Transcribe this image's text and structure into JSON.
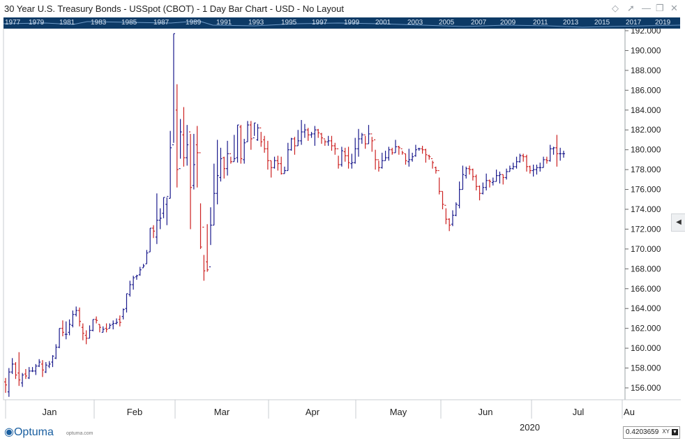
{
  "window": {
    "title": "30 Year U.S. Treasury Bonds - USSpot (CBOT) - 1 Day Bar Chart - USD - No Layout",
    "icons": [
      "diamond-icon",
      "pin-icon",
      "minimize-icon",
      "restore-icon",
      "close-icon"
    ]
  },
  "overview": {
    "years": [
      "1977",
      "1979",
      "1981",
      "1983",
      "1985",
      "1987",
      "1989",
      "1991",
      "1993",
      "1995",
      "1997",
      "1999",
      "2001",
      "2003",
      "2005",
      "2007",
      "2009",
      "2011",
      "2013",
      "2015",
      "2017",
      "2019"
    ],
    "background": "#0d3a66"
  },
  "footer": {
    "logo": "Optuma",
    "logo_url": "optuma.com",
    "year": "2020",
    "readout_value": "0.4203659",
    "readout_mode": "XY"
  },
  "chart_data": {
    "type": "bar",
    "subtype": "ohlc",
    "x_month_labels": [
      "Jan",
      "Feb",
      "Mar",
      "Apr",
      "May",
      "Jun",
      "Jul",
      "Au"
    ],
    "y_ticks": [
      "156.000",
      "158.000",
      "160.000",
      "162.000",
      "164.000",
      "166.000",
      "168.000",
      "170.000",
      "172.000",
      "174.000",
      "176.000",
      "178.000",
      "180.000",
      "182.000",
      "184.000",
      "186.000",
      "188.000",
      "190.000",
      "192.000"
    ],
    "ylim": [
      154.6,
      192.3
    ],
    "grid": false,
    "up_color": "#1a1a8c",
    "down_color": "#cc2020",
    "bars": [
      [
        156.6,
        156.3,
        155.5,
        157.0
      ],
      [
        155.6,
        157.6,
        155.1,
        158.0
      ],
      [
        157.6,
        158.4,
        157.4,
        159.0
      ],
      [
        158.4,
        157.3,
        156.9,
        158.6
      ],
      [
        157.5,
        156.8,
        156.2,
        159.6
      ],
      [
        156.5,
        157.3,
        156.1,
        157.5
      ],
      [
        157.4,
        157.2,
        156.9,
        157.9
      ],
      [
        157.0,
        157.7,
        156.9,
        158.1
      ],
      [
        157.7,
        157.7,
        157.6,
        158.1
      ],
      [
        157.7,
        158.2,
        157.3,
        158.4
      ],
      [
        158.2,
        158.6,
        158.1,
        158.9
      ],
      [
        158.4,
        157.8,
        157.1,
        158.8
      ],
      [
        157.6,
        158.3,
        157.5,
        158.6
      ],
      [
        158.2,
        158.4,
        158.0,
        158.7
      ],
      [
        158.6,
        159.2,
        158.1,
        159.3
      ],
      [
        159.0,
        160.1,
        158.9,
        160.4
      ],
      [
        160.1,
        162.0,
        160.0,
        162.0
      ],
      [
        162.0,
        161.6,
        161.2,
        162.8
      ],
      [
        161.4,
        161.4,
        160.9,
        162.7
      ],
      [
        161.6,
        162.4,
        161.3,
        162.9
      ],
      [
        162.3,
        163.4,
        162.1,
        163.8
      ],
      [
        163.4,
        163.8,
        163.2,
        164.2
      ],
      [
        163.8,
        162.7,
        162.2,
        164.1
      ],
      [
        162.1,
        161.5,
        160.8,
        162.5
      ],
      [
        161.3,
        161.0,
        160.4,
        161.8
      ],
      [
        161.0,
        161.8,
        161.0,
        162.3
      ],
      [
        161.8,
        162.9,
        161.7,
        162.9
      ],
      [
        162.9,
        162.8,
        162.5,
        163.2
      ],
      [
        162.4,
        162.1,
        161.6,
        162.4
      ],
      [
        161.6,
        161.9,
        161.6,
        162.2
      ],
      [
        162.0,
        161.9,
        161.6,
        162.5
      ],
      [
        162.0,
        162.3,
        162.0,
        162.5
      ],
      [
        162.4,
        162.5,
        161.9,
        162.8
      ],
      [
        162.5,
        162.6,
        162.4,
        163.0
      ],
      [
        162.9,
        162.6,
        162.2,
        163.3
      ],
      [
        163.2,
        163.9,
        162.9,
        164.0
      ],
      [
        164.0,
        165.5,
        163.6,
        165.5
      ],
      [
        165.4,
        166.4,
        165.2,
        166.8
      ],
      [
        166.4,
        167.1,
        165.9,
        167.3
      ],
      [
        167.2,
        167.3,
        166.9,
        167.4
      ],
      [
        167.4,
        167.9,
        167.3,
        168.2
      ],
      [
        168.1,
        168.3,
        168.1,
        168.5
      ],
      [
        168.5,
        169.6,
        168.5,
        169.9
      ],
      [
        169.7,
        172.1,
        169.7,
        172.1
      ],
      [
        172.1,
        171.8,
        171.1,
        172.4
      ],
      [
        171.2,
        172.9,
        170.5,
        175.6
      ],
      [
        172.9,
        173.1,
        172.0,
        174.1
      ],
      [
        173.6,
        175.2,
        173.1,
        175.2
      ],
      [
        174.5,
        175.3,
        172.4,
        175.2
      ],
      [
        175.1,
        180.2,
        175.1,
        181.9
      ],
      [
        180.5,
        191.7,
        180.7,
        191.7
      ],
      [
        184.0,
        178.0,
        176.2,
        186.6
      ],
      [
        178.1,
        181.8,
        179.1,
        183.1
      ],
      [
        181.5,
        179.2,
        178.3,
        184.3
      ],
      [
        179.2,
        180.5,
        178.4,
        182.5
      ],
      [
        181.8,
        176.2,
        172.0,
        181.6
      ],
      [
        176.4,
        178.5,
        176.0,
        181.6
      ],
      [
        180.5,
        179.7,
        176.2,
        182.4
      ],
      [
        179.7,
        170.2,
        170.0,
        174.6
      ],
      [
        172.2,
        167.8,
        166.8,
        169.4
      ],
      [
        168.7,
        167.9,
        167.7,
        172.5
      ],
      [
        168.2,
        172.4,
        170.4,
        174.2
      ],
      [
        172.4,
        175.6,
        172.4,
        178.6
      ],
      [
        175.6,
        177.4,
        174.5,
        181.0
      ],
      [
        177.2,
        179.1,
        176.8,
        180.2
      ],
      [
        179.2,
        178.1,
        177.1,
        179.3
      ],
      [
        178.1,
        179.6,
        177.4,
        180.9
      ],
      [
        179.6,
        178.8,
        178.6,
        179.3
      ],
      [
        178.8,
        179.1,
        178.8,
        181.5
      ],
      [
        179.2,
        182.5,
        178.7,
        182.5
      ],
      [
        182.3,
        179.1,
        178.6,
        182.5
      ],
      [
        179.0,
        180.7,
        178.6,
        181.1
      ],
      [
        180.8,
        182.5,
        180.8,
        182.9
      ],
      [
        182.5,
        181.1,
        180.0,
        182.9
      ],
      [
        181.2,
        182.7,
        181.4,
        182.7
      ],
      [
        181.0,
        182.2,
        180.9,
        182.6
      ],
      [
        182.2,
        180.8,
        180.3,
        181.8
      ],
      [
        181.0,
        180.1,
        179.7,
        181.4
      ],
      [
        180.1,
        178.9,
        178.0,
        180.9
      ],
      [
        178.9,
        178.2,
        177.2,
        178.9
      ],
      [
        178.2,
        178.9,
        178.1,
        179.3
      ],
      [
        178.9,
        178.6,
        177.9,
        179.4
      ],
      [
        178.6,
        177.6,
        177.5,
        179.3
      ],
      [
        177.6,
        177.9,
        177.6,
        178.3
      ],
      [
        177.9,
        180.0,
        177.9,
        180.7
      ],
      [
        180.0,
        181.1,
        179.9,
        181.2
      ],
      [
        181.1,
        180.4,
        179.5,
        181.3
      ],
      [
        180.4,
        180.9,
        180.4,
        182.0
      ],
      [
        180.9,
        181.8,
        180.5,
        183.0
      ],
      [
        181.8,
        182.0,
        181.2,
        182.6
      ],
      [
        182.0,
        181.5,
        180.9,
        182.2
      ],
      [
        181.5,
        181.6,
        181.2,
        181.8
      ],
      [
        181.6,
        182.0,
        180.4,
        182.4
      ],
      [
        182.0,
        181.7,
        181.2,
        182.1
      ],
      [
        181.6,
        181.2,
        180.6,
        181.7
      ],
      [
        181.1,
        180.8,
        180.4,
        181.0
      ],
      [
        180.8,
        180.9,
        180.4,
        181.4
      ],
      [
        180.9,
        180.4,
        179.9,
        181.4
      ],
      [
        180.4,
        180.1,
        179.5,
        180.7
      ],
      [
        180.1,
        178.5,
        178.1,
        179.4
      ],
      [
        178.5,
        179.9,
        178.3,
        180.3
      ],
      [
        179.8,
        179.4,
        178.8,
        180.2
      ],
      [
        179.4,
        178.7,
        178.1,
        180.3
      ],
      [
        178.6,
        178.7,
        178.1,
        179.6
      ],
      [
        178.7,
        180.1,
        178.6,
        181.2
      ],
      [
        180.1,
        181.1,
        179.3,
        182.1
      ],
      [
        181.1,
        181.5,
        180.6,
        181.7
      ],
      [
        181.5,
        180.6,
        180.1,
        181.4
      ],
      [
        180.6,
        181.6,
        180.6,
        182.5
      ],
      [
        181.6,
        180.9,
        179.8,
        181.3
      ],
      [
        181.0,
        179.0,
        178.0,
        180.0
      ],
      [
        179.0,
        178.2,
        177.8,
        178.9
      ],
      [
        178.2,
        178.9,
        178.1,
        179.7
      ],
      [
        178.9,
        179.2,
        178.9,
        179.9
      ],
      [
        179.2,
        180.0,
        178.9,
        180.3
      ],
      [
        180.0,
        179.7,
        179.5,
        180.2
      ],
      [
        179.7,
        180.3,
        179.7,
        181.0
      ],
      [
        180.3,
        180.2,
        179.5,
        180.4
      ],
      [
        180.1,
        179.7,
        179.5,
        179.9
      ],
      [
        179.6,
        178.9,
        178.5,
        179.6
      ],
      [
        178.8,
        179.0,
        178.3,
        180.1
      ],
      [
        179.0,
        179.3,
        178.8,
        179.7
      ],
      [
        179.4,
        180.0,
        179.3,
        180.5
      ],
      [
        180.1,
        180.1,
        179.9,
        180.2
      ],
      [
        180.1,
        180.0,
        179.6,
        180.4
      ],
      [
        180.0,
        179.5,
        178.7,
        180.1
      ],
      [
        179.4,
        179.3,
        179.0,
        179.5
      ],
      [
        179.1,
        178.7,
        178.1,
        178.9
      ],
      [
        178.2,
        177.9,
        177.6,
        178.3
      ],
      [
        177.9,
        175.8,
        175.5,
        177.2
      ],
      [
        175.8,
        174.5,
        174.0,
        175.8
      ],
      [
        174.4,
        173.0,
        172.5,
        174.1
      ],
      [
        173.0,
        172.4,
        171.8,
        173.1
      ],
      [
        172.5,
        173.4,
        172.3,
        173.9
      ],
      [
        173.4,
        174.5,
        173.3,
        174.7
      ],
      [
        174.4,
        176.0,
        174.1,
        176.8
      ],
      [
        176.0,
        177.5,
        176.0,
        178.4
      ],
      [
        177.4,
        178.1,
        177.1,
        178.3
      ],
      [
        178.1,
        178.0,
        177.5,
        178.4
      ],
      [
        178.0,
        177.3,
        176.9,
        178.1
      ],
      [
        177.3,
        176.3,
        175.9,
        177.5
      ],
      [
        176.3,
        175.6,
        174.9,
        176.4
      ],
      [
        175.6,
        176.2,
        175.5,
        176.7
      ],
      [
        176.2,
        176.9,
        175.9,
        177.6
      ],
      [
        176.9,
        176.8,
        176.2,
        177.0
      ],
      [
        176.7,
        176.8,
        176.4,
        177.2
      ],
      [
        176.8,
        177.4,
        176.8,
        178.0
      ],
      [
        177.4,
        177.5,
        176.6,
        177.8
      ],
      [
        177.5,
        177.2,
        176.5,
        177.5
      ],
      [
        177.2,
        177.8,
        177.0,
        178.1
      ],
      [
        177.8,
        178.1,
        177.8,
        178.4
      ],
      [
        178.1,
        178.3,
        178.0,
        178.7
      ],
      [
        178.3,
        178.8,
        178.1,
        179.3
      ],
      [
        178.8,
        179.4,
        178.7,
        179.6
      ],
      [
        179.4,
        179.3,
        178.8,
        179.6
      ],
      [
        179.3,
        178.3,
        177.8,
        179.5
      ],
      [
        178.3,
        177.9,
        177.6,
        178.4
      ],
      [
        177.9,
        178.0,
        177.3,
        178.5
      ],
      [
        178.0,
        178.2,
        177.5,
        178.5
      ],
      [
        178.2,
        178.2,
        177.8,
        178.7
      ],
      [
        178.2,
        179.0,
        178.2,
        179.3
      ],
      [
        179.0,
        178.9,
        178.6,
        179.3
      ],
      [
        178.9,
        180.1,
        178.8,
        180.5
      ],
      [
        180.1,
        180.2,
        179.5,
        180.3
      ],
      [
        180.2,
        179.6,
        178.3,
        181.5
      ],
      [
        179.6,
        179.6,
        178.9,
        180.2
      ],
      [
        179.6,
        179.6,
        179.2,
        179.9
      ]
    ]
  }
}
